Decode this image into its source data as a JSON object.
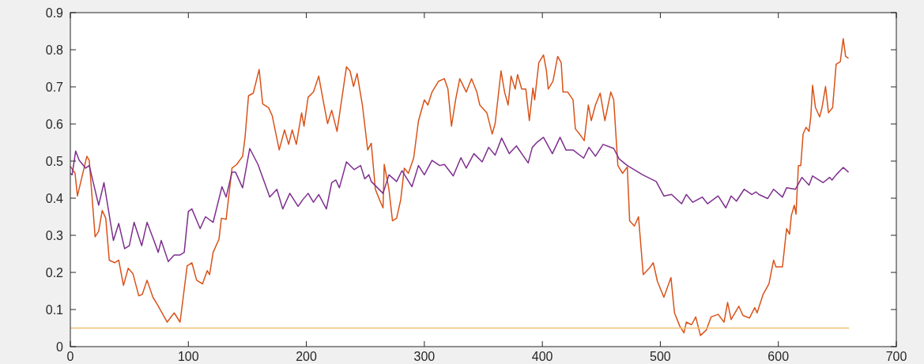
{
  "chart_data": {
    "type": "line",
    "xlim": [
      0,
      700
    ],
    "ylim": [
      0,
      0.9
    ],
    "xticks": [
      0,
      100,
      200,
      300,
      400,
      500,
      600,
      700
    ],
    "yticks": [
      0,
      0.1,
      0.2,
      0.3,
      0.4,
      0.5,
      0.6,
      0.7,
      0.8,
      0.9
    ],
    "grid": false,
    "line_style": "solid",
    "series": [
      {
        "color": "#d95319",
        "x": [
          0,
          4,
          6,
          14,
          16,
          21,
          24,
          27,
          30,
          33,
          37.5,
          41,
          45,
          49,
          53,
          58,
          61,
          65,
          70,
          74,
          82,
          88,
          93,
          99,
          103,
          107,
          112,
          116,
          118,
          121,
          126,
          128,
          132,
          137,
          141,
          146,
          148,
          151,
          155,
          160,
          163,
          168,
          171,
          177,
          181.5,
          185,
          188,
          191.5,
          196,
          198,
          201.5,
          206,
          210.5,
          215,
          218,
          221.5,
          226,
          228,
          234,
          237,
          240,
          243,
          247.5,
          252,
          255,
          258.5,
          262,
          265,
          266,
          270,
          273,
          276.5,
          280,
          283,
          286.5,
          291,
          295,
          300,
          303,
          306.5,
          312,
          317,
          320,
          323,
          326.5,
          330,
          335.5,
          340,
          344.5,
          347,
          353,
          357.5,
          360,
          365,
          368,
          371,
          373.5,
          377,
          379,
          382.5,
          386,
          389,
          392,
          393.5,
          397,
          401,
          403.5,
          405,
          409,
          413,
          416,
          417.5,
          421.5,
          426,
          428,
          431.5,
          435.5,
          439,
          441.5,
          445,
          449,
          453,
          458,
          460.5,
          464,
          468,
          472,
          474,
          478,
          481.5,
          485.5,
          490.5,
          494,
          497.5,
          503,
          509,
          512,
          516.5,
          520,
          522,
          526.5,
          530,
          534,
          539,
          543,
          549,
          554,
          557,
          560,
          566.5,
          570,
          575.5,
          580,
          582,
          587,
          592,
          596,
          598,
          603.5,
          607,
          609.5,
          611,
          613.5,
          615,
          617,
          619,
          621,
          623.5,
          626,
          627.5,
          629,
          631.5,
          635,
          637,
          640,
          642.5,
          646,
          649,
          652.5,
          655,
          657,
          659.5
        ],
        "values": [
          0.486,
          0.467,
          0.406,
          0.513,
          0.502,
          0.296,
          0.311,
          0.367,
          0.346,
          0.233,
          0.226,
          0.233,
          0.165,
          0.211,
          0.197,
          0.137,
          0.141,
          0.179,
          0.133,
          0.112,
          0.066,
          0.091,
          0.066,
          0.218,
          0.226,
          0.179,
          0.169,
          0.205,
          0.194,
          0.254,
          0.29,
          0.346,
          0.343,
          0.481,
          0.491,
          0.513,
          0.562,
          0.676,
          0.683,
          0.747,
          0.654,
          0.644,
          0.623,
          0.53,
          0.584,
          0.545,
          0.584,
          0.545,
          0.63,
          0.594,
          0.672,
          0.686,
          0.729,
          0.651,
          0.601,
          0.637,
          0.58,
          0.623,
          0.754,
          0.743,
          0.701,
          0.736,
          0.651,
          0.53,
          0.548,
          0.424,
          0.396,
          0.374,
          0.491,
          0.424,
          0.339,
          0.346,
          0.396,
          0.481,
          0.467,
          0.509,
          0.608,
          0.665,
          0.651,
          0.686,
          0.715,
          0.722,
          0.694,
          0.594,
          0.665,
          0.722,
          0.686,
          0.722,
          0.686,
          0.651,
          0.63,
          0.573,
          0.601,
          0.743,
          0.686,
          0.651,
          0.729,
          0.694,
          0.733,
          0.694,
          0.694,
          0.609,
          0.697,
          0.665,
          0.765,
          0.786,
          0.743,
          0.694,
          0.715,
          0.782,
          0.765,
          0.686,
          0.686,
          0.665,
          0.587,
          0.573,
          0.555,
          0.651,
          0.609,
          0.651,
          0.683,
          0.609,
          0.686,
          0.665,
          0.488,
          0.467,
          0.484,
          0.339,
          0.325,
          0.35,
          0.194,
          0.211,
          0.226,
          0.176,
          0.133,
          0.186,
          0.091,
          0.055,
          0.037,
          0.066,
          0.059,
          0.08,
          0.03,
          0.045,
          0.08,
          0.087,
          0.066,
          0.119,
          0.073,
          0.109,
          0.084,
          0.077,
          0.105,
          0.091,
          0.14,
          0.169,
          0.233,
          0.215,
          0.215,
          0.318,
          0.303,
          0.353,
          0.381,
          0.357,
          0.488,
          0.488,
          0.573,
          0.591,
          0.58,
          0.619,
          0.704,
          0.644,
          0.619,
          0.644,
          0.701,
          0.63,
          0.644,
          0.761,
          0.768,
          0.83,
          0.782,
          0.777
        ]
      },
      {
        "color": "#7e2f8e",
        "x": [
          0,
          1.5,
          4.5,
          7.5,
          13,
          16,
          24,
          28.5,
          36.5,
          41,
          46,
          50,
          54,
          60.5,
          65,
          70,
          74.5,
          77,
          83,
          88,
          93,
          96.5,
          100,
          103,
          110,
          114.5,
          121,
          128.5,
          132,
          137,
          140,
          146,
          152,
          159,
          169,
          175,
          180,
          186,
          193,
          197,
          201.5,
          206,
          210.5,
          217,
          221.5,
          225,
          228,
          234,
          240.5,
          246,
          249.5,
          253,
          255,
          265,
          270,
          276.5,
          281,
          289.5,
          295,
          300,
          306.5,
          313,
          317,
          324.5,
          331,
          335.5,
          342,
          349,
          354.5,
          360,
          365.5,
          372,
          378,
          388,
          391.5,
          396,
          401,
          408.5,
          415,
          420,
          426,
          435,
          439.5,
          445,
          451.5,
          460.5,
          465,
          472,
          485,
          496.5,
          503,
          509.5,
          518,
          522,
          527.5,
          535.5,
          540,
          549,
          555.5,
          560,
          564.5,
          571,
          577.5,
          581,
          583.5,
          591,
          596,
          603.5,
          607,
          614.5,
          620,
          626,
          629,
          638,
          643.5,
          645.5,
          649,
          655,
          659.5
        ],
        "values": [
          0.467,
          0.463,
          0.527,
          0.502,
          0.481,
          0.488,
          0.381,
          0.442,
          0.286,
          0.332,
          0.264,
          0.272,
          0.335,
          0.272,
          0.335,
          0.293,
          0.254,
          0.286,
          0.229,
          0.247,
          0.247,
          0.254,
          0.364,
          0.371,
          0.318,
          0.35,
          0.335,
          0.431,
          0.403,
          0.47,
          0.47,
          0.428,
          0.534,
          0.491,
          0.403,
          0.424,
          0.371,
          0.413,
          0.378,
          0.396,
          0.413,
          0.389,
          0.41,
          0.371,
          0.442,
          0.449,
          0.428,
          0.498,
          0.477,
          0.488,
          0.452,
          0.463,
          0.445,
          0.413,
          0.463,
          0.445,
          0.474,
          0.431,
          0.488,
          0.463,
          0.502,
          0.488,
          0.491,
          0.46,
          0.509,
          0.481,
          0.52,
          0.498,
          0.537,
          0.516,
          0.562,
          0.52,
          0.541,
          0.495,
          0.537,
          0.552,
          0.564,
          0.52,
          0.564,
          0.53,
          0.53,
          0.508,
          0.537,
          0.513,
          0.545,
          0.534,
          0.506,
          0.488,
          0.463,
          0.445,
          0.406,
          0.41,
          0.385,
          0.41,
          0.389,
          0.403,
          0.385,
          0.406,
          0.374,
          0.406,
          0.392,
          0.424,
          0.41,
          0.417,
          0.41,
          0.399,
          0.424,
          0.403,
          0.428,
          0.424,
          0.456,
          0.435,
          0.46,
          0.442,
          0.456,
          0.449,
          0.463,
          0.483,
          0.47
        ]
      },
      {
        "color": "#edc070",
        "x": [
          0,
          660
        ],
        "values": [
          0.05,
          0.05
        ]
      }
    ]
  }
}
